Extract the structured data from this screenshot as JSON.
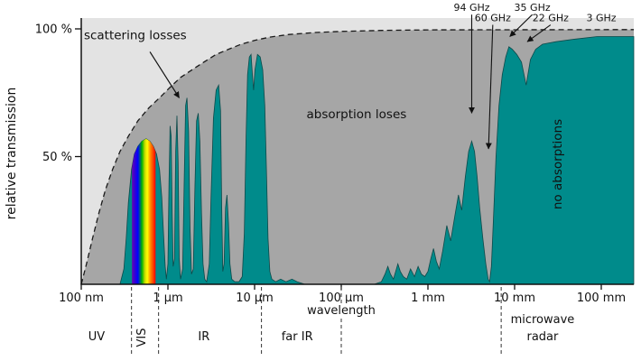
{
  "chart_data": {
    "type": "area",
    "title": "",
    "xlabel": "wavelength",
    "ylabel": "relative transmission",
    "x_scale": "log",
    "x_unit": "µm",
    "x_domain_um": [
      0.1,
      237000
    ],
    "ylim": [
      0,
      100
    ],
    "grid": false,
    "legend": "none",
    "colors": {
      "background_light": "#e3e3e3",
      "absorption_region": "#a6a6a6",
      "transmission_fill": "#008b8b",
      "transmission_stroke": "#0e4a4a",
      "envelope_dash": "#1a1a1a",
      "text": "#111111"
    },
    "x_ticks": [
      {
        "um": 0.1,
        "label": "100 nm"
      },
      {
        "um": 1,
        "label": "1 µm"
      },
      {
        "um": 10,
        "label": "10 µm"
      },
      {
        "um": 100,
        "label": "100 µm"
      },
      {
        "um": 1000,
        "label": "1 mm"
      },
      {
        "um": 10000,
        "label": "10 mm"
      },
      {
        "um": 100000,
        "label": "100 mm"
      }
    ],
    "y_ticks": [
      {
        "value": 100,
        "label": "100 %"
      },
      {
        "value": 50,
        "label": "50 %"
      }
    ],
    "envelope": {
      "name": "scattering loss limit (dashed envelope)",
      "points": [
        [
          0.1,
          0
        ],
        [
          0.115,
          8
        ],
        [
          0.135,
          18
        ],
        [
          0.16,
          28
        ],
        [
          0.19,
          37
        ],
        [
          0.23,
          45
        ],
        [
          0.28,
          52
        ],
        [
          0.35,
          58
        ],
        [
          0.45,
          64
        ],
        [
          0.6,
          69
        ],
        [
          0.8,
          73
        ],
        [
          1.05,
          77
        ],
        [
          1.4,
          81
        ],
        [
          1.9,
          84
        ],
        [
          2.6,
          87
        ],
        [
          3.6,
          90
        ],
        [
          5,
          92
        ],
        [
          7,
          94
        ],
        [
          10,
          95.5
        ],
        [
          15,
          96.8
        ],
        [
          25,
          97.8
        ],
        [
          50,
          98.6
        ],
        [
          100,
          99
        ],
        [
          300,
          99.4
        ],
        [
          1000,
          99.6
        ],
        [
          237000,
          99.7
        ]
      ]
    },
    "transmission": {
      "name": "atmospheric transmission",
      "points": [
        [
          0.1,
          0
        ],
        [
          0.28,
          0
        ],
        [
          0.31,
          6
        ],
        [
          0.33,
          18
        ],
        [
          0.35,
          32
        ],
        [
          0.38,
          45
        ],
        [
          0.41,
          51
        ],
        [
          0.45,
          54
        ],
        [
          0.5,
          56
        ],
        [
          0.56,
          57
        ],
        [
          0.62,
          56
        ],
        [
          0.68,
          54
        ],
        [
          0.74,
          51
        ],
        [
          0.8,
          45
        ],
        [
          0.85,
          34
        ],
        [
          0.89,
          20
        ],
        [
          0.93,
          7
        ],
        [
          0.96,
          2
        ],
        [
          1.0,
          8
        ],
        [
          1.03,
          40
        ],
        [
          1.06,
          62
        ],
        [
          1.09,
          58
        ],
        [
          1.12,
          28
        ],
        [
          1.15,
          7
        ],
        [
          1.19,
          10
        ],
        [
          1.23,
          52
        ],
        [
          1.27,
          66
        ],
        [
          1.31,
          48
        ],
        [
          1.35,
          10
        ],
        [
          1.4,
          2
        ],
        [
          1.48,
          6
        ],
        [
          1.54,
          40
        ],
        [
          1.6,
          70
        ],
        [
          1.66,
          73
        ],
        [
          1.73,
          60
        ],
        [
          1.8,
          22
        ],
        [
          1.87,
          4
        ],
        [
          1.96,
          6
        ],
        [
          2.05,
          38
        ],
        [
          2.14,
          64
        ],
        [
          2.24,
          67
        ],
        [
          2.34,
          56
        ],
        [
          2.44,
          28
        ],
        [
          2.54,
          8
        ],
        [
          2.66,
          2
        ],
        [
          2.8,
          1
        ],
        [
          3.0,
          8
        ],
        [
          3.15,
          35
        ],
        [
          3.35,
          65
        ],
        [
          3.6,
          76
        ],
        [
          3.85,
          78
        ],
        [
          4.05,
          68
        ],
        [
          4.18,
          30
        ],
        [
          4.3,
          5
        ],
        [
          4.45,
          8
        ],
        [
          4.62,
          30
        ],
        [
          4.8,
          35
        ],
        [
          5.0,
          24
        ],
        [
          5.2,
          8
        ],
        [
          5.45,
          2
        ],
        [
          5.9,
          1
        ],
        [
          6.6,
          1
        ],
        [
          7.2,
          3
        ],
        [
          7.6,
          20
        ],
        [
          7.95,
          55
        ],
        [
          8.3,
          82
        ],
        [
          8.7,
          89
        ],
        [
          9.1,
          90
        ],
        [
          9.45,
          82
        ],
        [
          9.75,
          76
        ],
        [
          10.1,
          84
        ],
        [
          10.8,
          90
        ],
        [
          11.6,
          89
        ],
        [
          12.4,
          84
        ],
        [
          13.1,
          70
        ],
        [
          13.7,
          45
        ],
        [
          14.3,
          18
        ],
        [
          15.0,
          5
        ],
        [
          15.8,
          2
        ],
        [
          17.5,
          1
        ],
        [
          20,
          2
        ],
        [
          23,
          1
        ],
        [
          27,
          2
        ],
        [
          31,
          1
        ],
        [
          38,
          0
        ],
        [
          55,
          0
        ],
        [
          90,
          0
        ],
        [
          160,
          0
        ],
        [
          240,
          0
        ],
        [
          290,
          1
        ],
        [
          320,
          4
        ],
        [
          345,
          7
        ],
        [
          370,
          4
        ],
        [
          400,
          2
        ],
        [
          425,
          5
        ],
        [
          450,
          8
        ],
        [
          480,
          5
        ],
        [
          520,
          3
        ],
        [
          570,
          2
        ],
        [
          630,
          6
        ],
        [
          700,
          3
        ],
        [
          770,
          7
        ],
        [
          840,
          4
        ],
        [
          920,
          3
        ],
        [
          1000,
          5
        ],
        [
          1080,
          10
        ],
        [
          1160,
          14
        ],
        [
          1250,
          9
        ],
        [
          1350,
          6
        ],
        [
          1480,
          13
        ],
        [
          1650,
          23
        ],
        [
          1830,
          17
        ],
        [
          2050,
          27
        ],
        [
          2250,
          35
        ],
        [
          2450,
          29
        ],
        [
          2700,
          42
        ],
        [
          2950,
          52
        ],
        [
          3200,
          56
        ],
        [
          3450,
          52
        ],
        [
          3700,
          42
        ],
        [
          3950,
          30
        ],
        [
          4300,
          18
        ],
        [
          4650,
          8
        ],
        [
          4950,
          2
        ],
        [
          5150,
          1
        ],
        [
          5400,
          7
        ],
        [
          5700,
          26
        ],
        [
          6100,
          50
        ],
        [
          6600,
          70
        ],
        [
          7200,
          82
        ],
        [
          7900,
          89
        ],
        [
          8600,
          93
        ],
        [
          9400,
          92
        ],
        [
          10600,
          90
        ],
        [
          12000,
          87
        ],
        [
          13600,
          78
        ],
        [
          15200,
          88
        ],
        [
          17500,
          92
        ],
        [
          21000,
          94
        ],
        [
          30000,
          95
        ],
        [
          50000,
          96
        ],
        [
          90000,
          97
        ],
        [
          237000,
          97
        ]
      ]
    },
    "visible_band_um": [
      0.385,
      0.72
    ],
    "rainbow_stops": [
      {
        "offset": 0,
        "color": "#6a00b0"
      },
      {
        "offset": 0.12,
        "color": "#3500d3"
      },
      {
        "offset": 0.25,
        "color": "#0000ff"
      },
      {
        "offset": 0.42,
        "color": "#00b400"
      },
      {
        "offset": 0.55,
        "color": "#ccdd00"
      },
      {
        "offset": 0.65,
        "color": "#ffff00"
      },
      {
        "offset": 0.78,
        "color": "#ff8c00"
      },
      {
        "offset": 1,
        "color": "#ff0000"
      }
    ],
    "region_labels": [
      {
        "text": "scattering losses",
        "um": 0.42,
        "pct": 96,
        "rotate": 0
      },
      {
        "text": "absorption loses",
        "um": 150,
        "pct": 65,
        "rotate": 0
      },
      {
        "text": "no absorptions",
        "um": 35000,
        "pct": 47,
        "rotate": -90
      }
    ],
    "scattering_arrow": {
      "from_um": 0.62,
      "from_pct": 91,
      "to_um": 1.35,
      "to_pct": 73
    },
    "annotations_ghz": [
      {
        "label": "94 GHz",
        "label_um": 3200,
        "label_pct": 107,
        "target_um": 3200,
        "target_pct": 67,
        "arrow": true
      },
      {
        "label": "60 GHz",
        "label_um": 5600,
        "label_pct": 103,
        "target_um": 5000,
        "target_pct": 53,
        "arrow": true
      },
      {
        "label": "35 GHz",
        "label_um": 16000,
        "label_pct": 107,
        "target_um": 8800,
        "target_pct": 97,
        "arrow": true
      },
      {
        "label": "22 GHz",
        "label_um": 26000,
        "label_pct": 103,
        "target_um": 14000,
        "target_pct": 95,
        "arrow": true
      },
      {
        "label": "3 GHz",
        "label_um": 100000,
        "label_pct": 103,
        "arrow": false
      }
    ],
    "band_separators_um": [
      0.38,
      0.78,
      12,
      100,
      7000
    ],
    "band_labels": [
      {
        "lines": [
          "UV"
        ],
        "um": 0.15,
        "rotate": false
      },
      {
        "lines": [
          "VIS"
        ],
        "um": 0.55,
        "rotate": true
      },
      {
        "lines": [
          "IR"
        ],
        "um": 2.6,
        "rotate": false
      },
      {
        "lines": [
          "far IR"
        ],
        "um": 31,
        "rotate": false
      },
      {
        "lines": [
          "microwave",
          "radar"
        ],
        "um": 21000,
        "rotate": false
      }
    ]
  }
}
